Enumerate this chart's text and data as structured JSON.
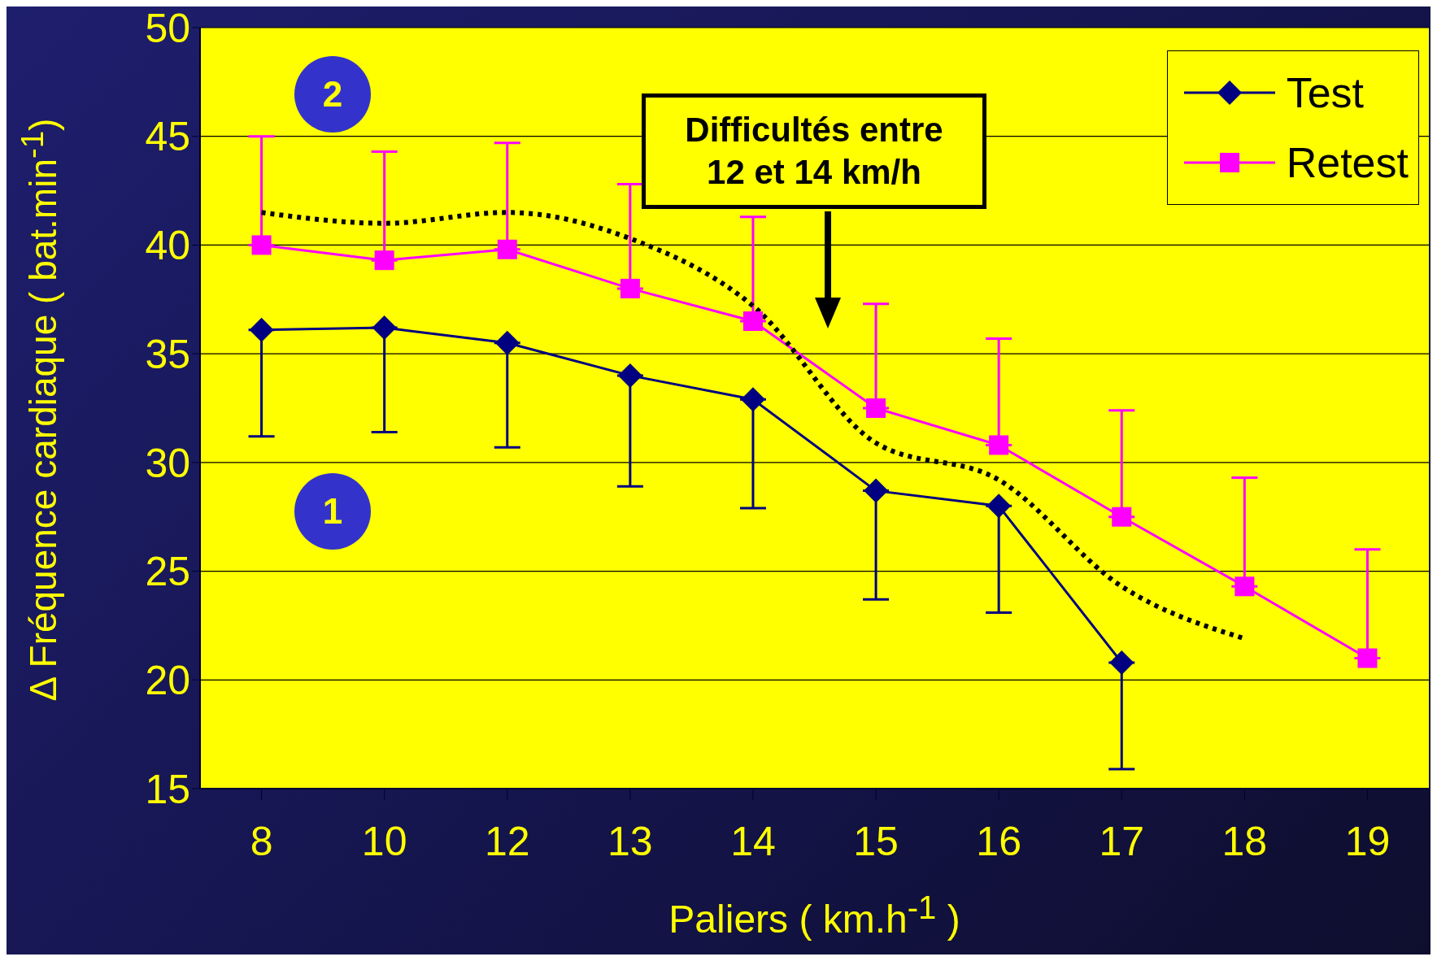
{
  "chart_data": {
    "type": "line",
    "xlabel": "Paliers ( km.h$^{-1}$ )",
    "ylabel": "Δ Fréquence cardiaque ( bat.min$^{-1}$)",
    "categories": [
      "8",
      "10",
      "12",
      "13",
      "14",
      "15",
      "16",
      "17",
      "18",
      "19"
    ],
    "series": [
      {
        "name": "Test",
        "color": "#000080",
        "marker": "diamond",
        "values": [
          36.1,
          36.2,
          35.5,
          34.0,
          32.9,
          28.7,
          28.0,
          20.8,
          null,
          null
        ],
        "errors": [
          [
            31.2,
            36.1
          ],
          [
            31.4,
            36.2
          ],
          [
            30.7,
            35.5
          ],
          [
            28.9,
            34.0
          ],
          [
            27.9,
            32.9
          ],
          [
            23.7,
            28.7
          ],
          [
            23.1,
            28.0
          ],
          [
            15.9,
            20.8
          ],
          null,
          null
        ]
      },
      {
        "name": "Retest",
        "color": "#ff00ff",
        "marker": "square",
        "values": [
          40.0,
          39.3,
          39.8,
          38.0,
          36.5,
          32.5,
          30.8,
          27.5,
          24.3,
          21.0
        ],
        "errors": [
          [
            40.0,
            45.0
          ],
          [
            39.3,
            44.3
          ],
          [
            39.8,
            44.7
          ],
          [
            38.0,
            42.8
          ],
          [
            36.5,
            41.3
          ],
          [
            32.5,
            37.3
          ],
          [
            30.8,
            35.7
          ],
          [
            27.5,
            32.4
          ],
          [
            24.3,
            29.3
          ],
          [
            21.0,
            26.0
          ]
        ]
      },
      {
        "color": "#000000",
        "marker": "none",
        "line_style": "dotted",
        "values": [
          41.5,
          41.0,
          41.5,
          40.3,
          37.2,
          30.9,
          29.2,
          24.3,
          21.9,
          null
        ]
      }
    ],
    "ylim": [
      15,
      50
    ],
    "yticks": [
      15,
      20,
      25,
      30,
      35,
      40,
      45,
      50
    ],
    "grid": "y",
    "legend": "top right",
    "annotations": [
      "Difficultés entre\n12 et 14 km/h",
      "2",
      "1"
    ]
  }
}
